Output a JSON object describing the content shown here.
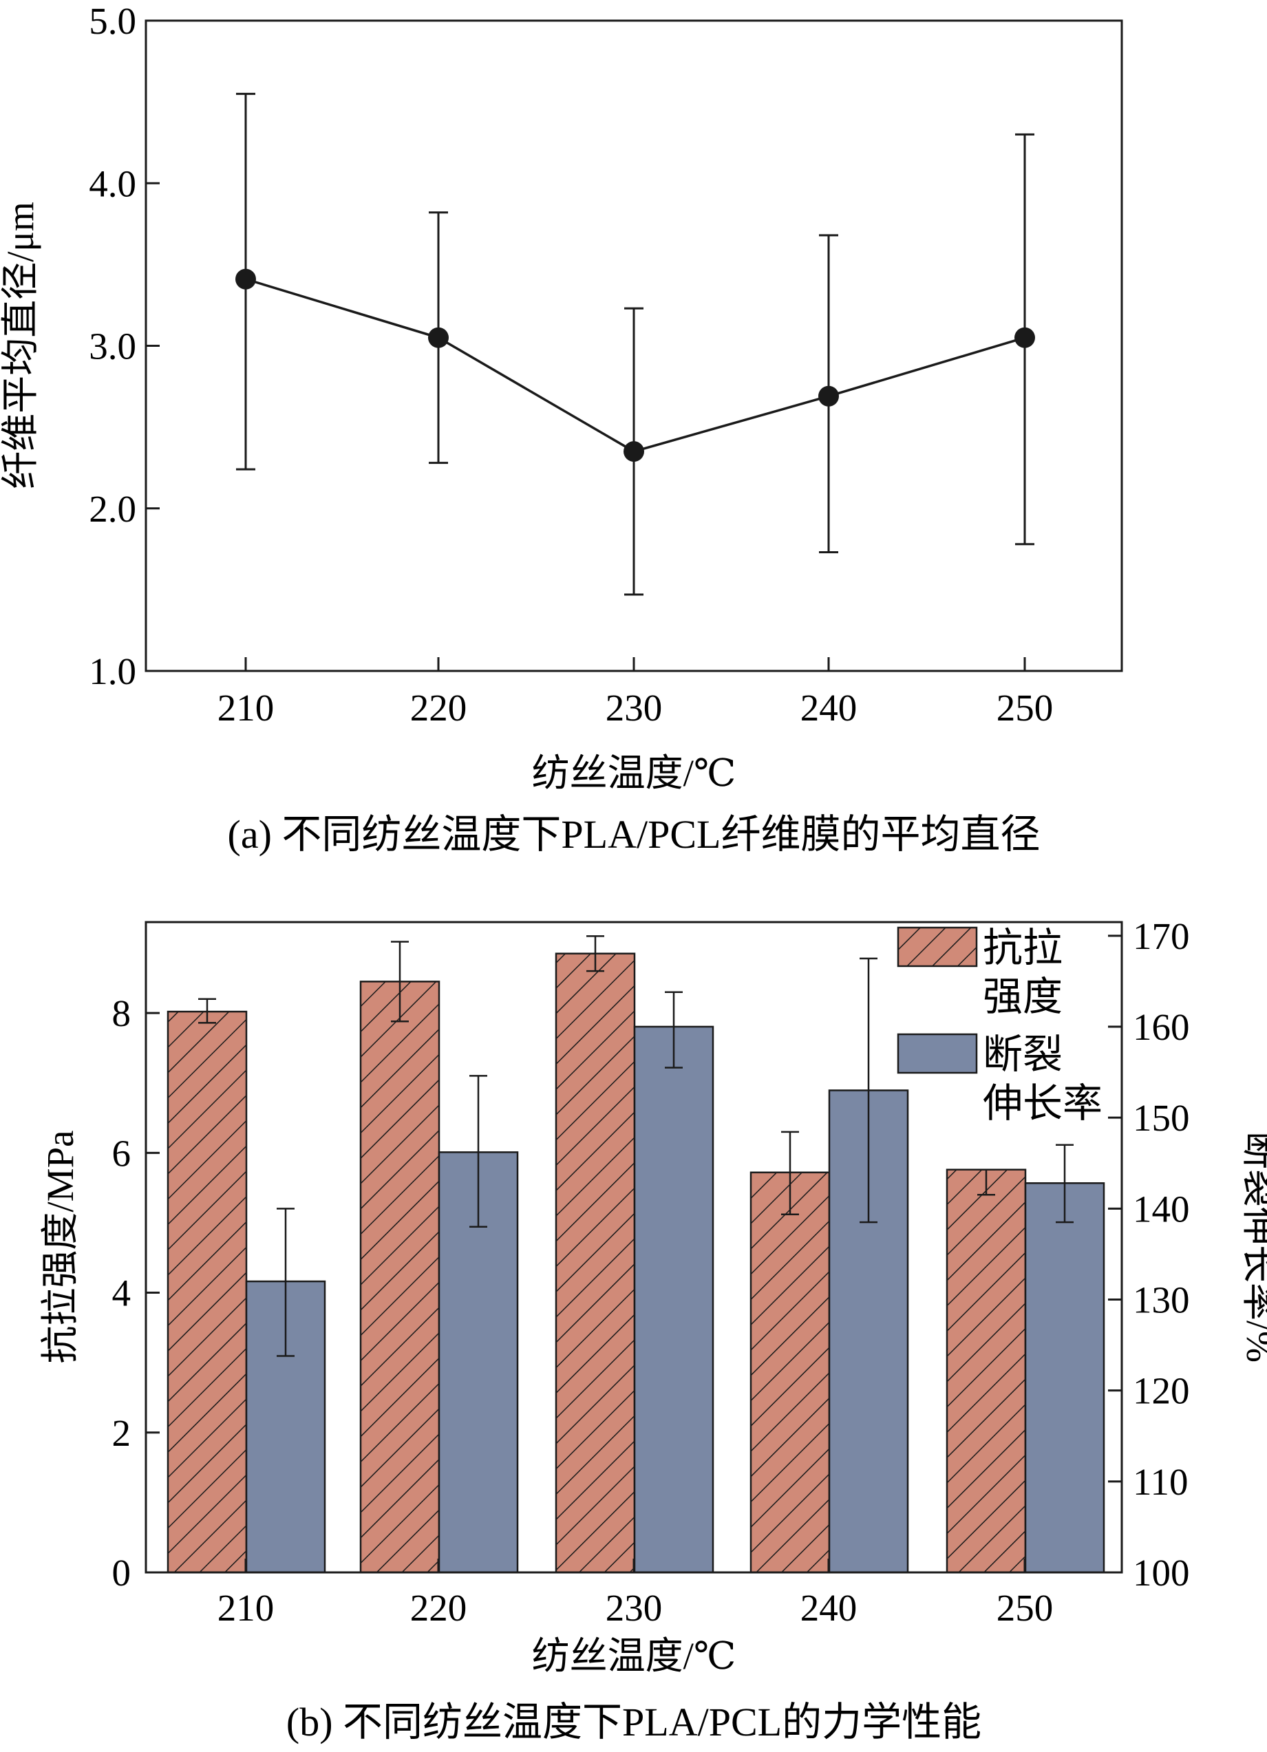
{
  "chart_data": [
    {
      "type": "line",
      "title": "",
      "caption": "(a) 不同纺丝温度下PLA/PCL纤维膜的平均直径",
      "xlabel": "纺丝温度/℃",
      "ylabel": "纤维平均直径/μm",
      "categories": [
        "210",
        "220",
        "230",
        "240",
        "250"
      ],
      "ylim": [
        1.0,
        5.0
      ],
      "yticks": [
        "1.0",
        "2.0",
        "3.0",
        "4.0",
        "5.0"
      ],
      "series": [
        {
          "name": "平均直径",
          "values": [
            3.41,
            3.05,
            2.35,
            2.69,
            3.05
          ],
          "err_low": [
            2.24,
            2.28,
            1.47,
            1.73,
            1.78
          ],
          "err_high": [
            4.55,
            3.82,
            3.23,
            3.68,
            4.3
          ]
        }
      ],
      "color": "#1a1a1a"
    },
    {
      "type": "bar",
      "title": "",
      "caption": "(b) 不同纺丝温度下PLA/PCL的力学性能",
      "xlabel": "纺丝温度/℃",
      "ylabel": "抗拉强度/MPa",
      "y2label": "断裂伸长率/%",
      "categories": [
        "210",
        "220",
        "230",
        "240",
        "250"
      ],
      "ylim": [
        0,
        9.3
      ],
      "yticks": [
        "0",
        "2",
        "4",
        "6",
        "8"
      ],
      "y2lim": [
        100,
        171.5
      ],
      "y2ticks": [
        "100",
        "110",
        "120",
        "130",
        "140",
        "150",
        "160",
        "170"
      ],
      "legend_position": "top-right",
      "series": [
        {
          "name": "抗拉强度",
          "legend_lines": [
            "抗拉",
            "强度"
          ],
          "axis": "left",
          "values": [
            8.02,
            8.45,
            8.85,
            5.72,
            5.76
          ],
          "err_low": [
            7.86,
            7.88,
            8.6,
            5.12,
            5.4
          ],
          "err_high": [
            8.2,
            9.02,
            9.1,
            6.3,
            5.76
          ],
          "color": "#d08a78",
          "pattern": "hatch"
        },
        {
          "name": "断裂伸长率",
          "legend_lines": [
            "断裂",
            "伸长率"
          ],
          "axis": "right",
          "values": [
            132.0,
            146.2,
            160.0,
            153.0,
            142.8
          ],
          "err_low": [
            123.8,
            138.0,
            155.5,
            138.5,
            138.5
          ],
          "err_high": [
            140.0,
            154.6,
            163.8,
            167.5,
            147.0
          ],
          "color": "#7a88a4",
          "pattern": "solid"
        }
      ]
    }
  ]
}
